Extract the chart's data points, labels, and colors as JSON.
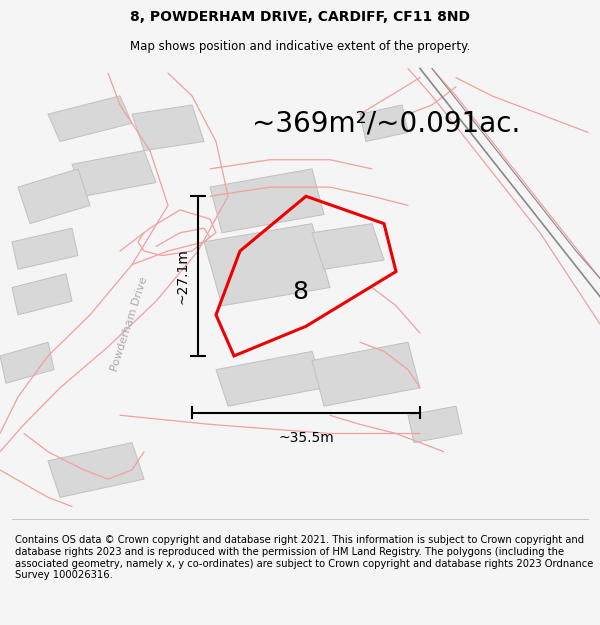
{
  "title": "8, POWDERHAM DRIVE, CARDIFF, CF11 8ND",
  "subtitle": "Map shows position and indicative extent of the property.",
  "area_text": "~369m²/~0.091ac.",
  "label_number": "8",
  "dim_vertical": "~27.1m",
  "dim_horizontal": "~35.5m",
  "street_label": "Powderham Drive",
  "copyright_text": "Contains OS data © Crown copyright and database right 2021. This information is subject to Crown copyright and database rights 2023 and is reproduced with the permission of HM Land Registry. The polygons (including the associated geometry, namely x, y co-ordinates) are subject to Crown copyright and database rights 2023 Ordnance Survey 100026316.",
  "bg_color": "#f5f5f5",
  "map_bg": "#ffffff",
  "road_color": "#f0a0a0",
  "building_color": "#d8d8d8",
  "building_edge": "#c0c0c0",
  "property_color": "#ee0000",
  "title_fontsize": 10,
  "subtitle_fontsize": 8.5,
  "area_fontsize": 20,
  "label_fontsize": 18,
  "dim_fontsize": 10,
  "copyright_fontsize": 7.2,
  "street_fontsize": 8
}
